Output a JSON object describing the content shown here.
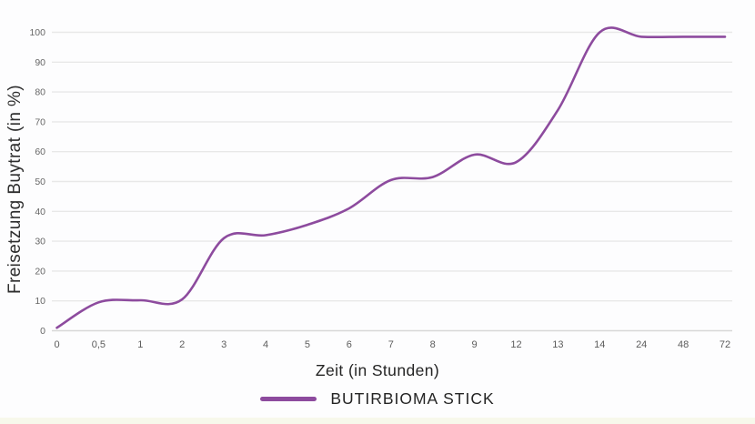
{
  "chart_data": {
    "type": "line",
    "title": "",
    "xlabel": "Zeit (in Stunden)",
    "ylabel": "Freisetzung Buytrat (in %)",
    "categories": [
      "0",
      "0,5",
      "1",
      "2",
      "3",
      "4",
      "5",
      "6",
      "7",
      "8",
      "9",
      "12",
      "13",
      "14",
      "24",
      "48",
      "72"
    ],
    "series": [
      {
        "name": "BUTIRBIOMA STICK",
        "color": "#8d4b9e",
        "values": [
          1,
          9.5,
          10.2,
          10.5,
          31,
          32,
          35.5,
          41,
          50.5,
          51.5,
          59,
          56.5,
          74,
          100,
          98.5,
          98.5,
          98.5
        ]
      }
    ],
    "ylim": [
      0,
      100
    ],
    "y_ticks": [
      0,
      10,
      20,
      30,
      40,
      50,
      60,
      70,
      80,
      90,
      100
    ],
    "grid": true,
    "legend_position": "bottom",
    "x_axis_type": "category"
  },
  "colors": {
    "line": "#8d4b9e",
    "gridline": "#e8e8e8",
    "baseline": "#d7d7d7",
    "y_tick_text": "#666666",
    "x_tick_text": "#5c5c5c",
    "footer_strip": "#f7f8eb"
  }
}
